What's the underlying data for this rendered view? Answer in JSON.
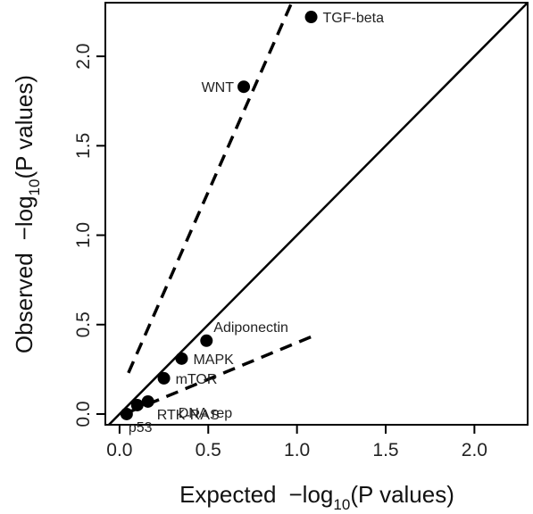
{
  "chart_data": {
    "type": "scatter",
    "xlabel": {
      "prefix": "Expected",
      "minus": "−log",
      "sub": "10",
      "suffix": "(P values)"
    },
    "ylabel": {
      "prefix": "Observed",
      "minus": "−log",
      "sub": "10",
      "suffix": "(P values)"
    },
    "xlim": [
      -0.08,
      2.3
    ],
    "ylim": [
      -0.06,
      2.3
    ],
    "x_ticks": [
      "0.0",
      "0.5",
      "1.0",
      "1.5",
      "2.0"
    ],
    "y_ticks": [
      "0.0",
      "0.5",
      "1.0",
      "1.5",
      "2.0"
    ],
    "grid": false,
    "points": [
      {
        "label": "TGF-beta",
        "x": 1.08,
        "y": 2.22,
        "label_side": "right"
      },
      {
        "label": "WNT",
        "x": 0.7,
        "y": 1.83,
        "label_side": "left"
      },
      {
        "label": "Adiponectin",
        "x": 0.49,
        "y": 0.41,
        "label_side": "above-right"
      },
      {
        "label": "MAPK",
        "x": 0.35,
        "y": 0.31,
        "label_side": "right"
      },
      {
        "label": "mTOR",
        "x": 0.25,
        "y": 0.2,
        "label_side": "right"
      },
      {
        "label": "DNA rep",
        "x": 0.16,
        "y": 0.07,
        "label_side": "far-right-below"
      },
      {
        "label": "RTK-RAS",
        "x": 0.1,
        "y": 0.05,
        "label_side": "right-below"
      },
      {
        "label": "p53",
        "x": 0.04,
        "y": 0.0,
        "label_side": "below"
      }
    ],
    "reference_line": {
      "type": "identity",
      "style": "solid"
    },
    "confidence_bounds": [
      {
        "name": "upper",
        "style": "dashed",
        "from": [
          0.05,
          0.23
        ],
        "to": [
          0.97,
          2.3
        ]
      },
      {
        "name": "lower",
        "style": "dashed",
        "from": [
          0.05,
          0.01
        ],
        "to": [
          1.1,
          0.44
        ]
      }
    ],
    "colors": {
      "points": "#000000",
      "lines": "#000000",
      "text": "#222222"
    }
  }
}
